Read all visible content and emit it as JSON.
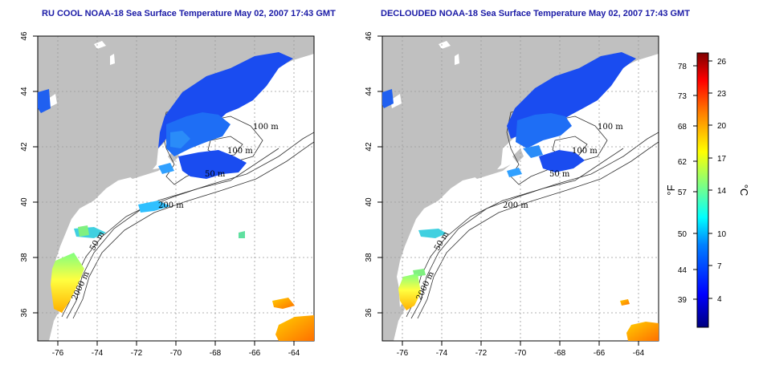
{
  "panels": [
    {
      "id": "left",
      "title": "RU COOL NOAA-18 Sea Surface Temperature May 02, 2007 17:43 GMT",
      "lon_ticks": [
        "-76",
        "-74",
        "-72",
        "-70",
        "-68",
        "-66",
        "-64"
      ],
      "lat_ticks": [
        "46",
        "44",
        "42",
        "40",
        "38",
        "36"
      ],
      "contour_labels": [
        "100 m",
        "100 m",
        "50 m",
        "200 m",
        "50 m",
        "2000 m"
      ]
    },
    {
      "id": "right",
      "title": "DECLOUDED NOAA-18 Sea Surface Temperature May 02, 2007 17:43 GMT",
      "lon_ticks": [
        "-76",
        "-74",
        "-72",
        "-70",
        "-68",
        "-66",
        "-64"
      ],
      "lat_ticks": [
        "46",
        "44",
        "42",
        "40",
        "38",
        "36"
      ],
      "contour_labels": [
        "100 m",
        "100 m",
        "50 m",
        "200 m",
        "50 m",
        "2000 m"
      ]
    }
  ],
  "colorbar": {
    "fahrenheit_ticks": [
      "78",
      "73",
      "68",
      "62",
      "57",
      "50",
      "44",
      "39"
    ],
    "celsius_ticks": [
      "26",
      "23",
      "20",
      "17",
      "14",
      "10",
      "7",
      "4"
    ],
    "fahrenheit_unit": "°F",
    "celsius_unit": "°C",
    "colors": [
      "#00007f",
      "#0000ff",
      "#0080ff",
      "#00ffff",
      "#80ff80",
      "#ffff00",
      "#ff8000",
      "#ff0000",
      "#7f0000"
    ]
  },
  "map_colors": {
    "land": "#c0c0c0",
    "ocean": "#ffffff",
    "grid": "#9a9a9a",
    "contour": "#333333"
  }
}
